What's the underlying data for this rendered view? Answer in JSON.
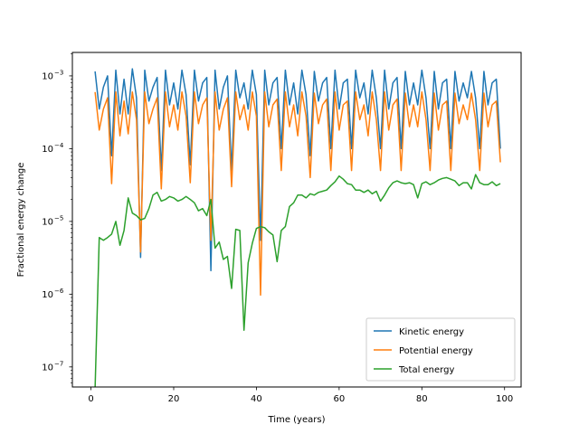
{
  "chart_data": {
    "type": "line",
    "title": "",
    "xlabel": "Time (years)",
    "ylabel": "Fractional energy change",
    "xscale": "linear",
    "yscale": "log",
    "xlim": [
      -4.5,
      104
    ],
    "ylim": [
      5.3e-08,
      0.0021
    ],
    "xticks": [
      0,
      20,
      40,
      60,
      80,
      100
    ],
    "xtick_labels": [
      "0",
      "20",
      "40",
      "60",
      "80",
      "100"
    ],
    "yticks": [
      1e-07,
      1e-06,
      1e-05,
      0.0001,
      0.001
    ],
    "ytick_labels": [
      {
        "base": "10",
        "exp": "−7"
      },
      {
        "base": "10",
        "exp": "−6"
      },
      {
        "base": "10",
        "exp": "−5"
      },
      {
        "base": "10",
        "exp": "−4"
      },
      {
        "base": "10",
        "exp": "−3"
      }
    ],
    "grid": false,
    "legend_position": "lower right",
    "series": [
      {
        "name": "Kinetic energy",
        "color": "#1f77b4",
        "x": [
          1,
          2,
          3,
          4,
          5,
          6,
          7,
          8,
          9,
          10,
          11,
          12,
          13,
          14,
          15,
          16,
          17,
          18,
          19,
          20,
          21,
          22,
          23,
          24,
          25,
          26,
          27,
          28,
          29,
          30,
          31,
          32,
          33,
          34,
          35,
          36,
          37,
          38,
          39,
          40,
          41,
          42,
          43,
          44,
          45,
          46,
          47,
          48,
          49,
          50,
          51,
          52,
          53,
          54,
          55,
          56,
          57,
          58,
          59,
          60,
          61,
          62,
          63,
          64,
          65,
          66,
          67,
          68,
          69,
          70,
          71,
          72,
          73,
          74,
          75,
          76,
          77,
          78,
          79,
          80,
          81,
          82,
          83,
          84,
          85,
          86,
          87,
          88,
          89,
          90,
          91,
          92,
          93,
          94,
          95,
          96,
          97,
          98,
          99
        ],
        "y": [
          0.00115,
          0.00035,
          0.0007,
          0.001,
          8e-05,
          0.0012,
          0.0003,
          0.0009,
          0.0003,
          0.00125,
          0.0005,
          3.2e-06,
          0.0012,
          0.00045,
          0.0007,
          0.00095,
          5e-05,
          0.0012,
          0.0004,
          0.0008,
          0.00035,
          0.0012,
          0.00055,
          6e-05,
          0.0012,
          0.00045,
          0.0008,
          0.00095,
          2.1e-06,
          0.0012,
          0.00035,
          0.0007,
          0.001,
          5e-05,
          0.0012,
          0.0005,
          0.0008,
          0.00035,
          0.0012,
          0.00055,
          5.5e-06,
          0.0012,
          0.0004,
          0.0008,
          0.00095,
          0.0001,
          0.0012,
          0.0004,
          0.0008,
          0.0003,
          0.0012,
          0.00055,
          8e-05,
          0.00115,
          0.00045,
          0.0008,
          0.00095,
          0.0001,
          0.0012,
          0.00035,
          0.0008,
          0.0009,
          0.0001,
          0.0012,
          0.0005,
          0.0008,
          0.0003,
          0.0012,
          0.0005,
          0.0001,
          0.0012,
          0.00035,
          0.0008,
          0.00095,
          0.0001,
          0.00115,
          0.0004,
          0.0008,
          0.0004,
          0.0012,
          0.0005,
          0.0001,
          0.00115,
          0.00035,
          0.0008,
          0.0009,
          0.0001,
          0.00115,
          0.00045,
          0.0008,
          0.0005,
          0.00115,
          0.0005,
          0.0001,
          0.00115,
          0.0004,
          0.0008,
          0.0009,
          0.0001
        ]
      },
      {
        "name": "Potential energy",
        "color": "#ff7f0e",
        "x": [
          1,
          2,
          3,
          4,
          5,
          6,
          7,
          8,
          9,
          10,
          11,
          12,
          13,
          14,
          15,
          16,
          17,
          18,
          19,
          20,
          21,
          22,
          23,
          24,
          25,
          26,
          27,
          28,
          29,
          30,
          31,
          32,
          33,
          34,
          35,
          36,
          37,
          38,
          39,
          40,
          41,
          42,
          43,
          44,
          45,
          46,
          47,
          48,
          49,
          50,
          51,
          52,
          53,
          54,
          55,
          56,
          57,
          58,
          59,
          60,
          61,
          62,
          63,
          64,
          65,
          66,
          67,
          68,
          69,
          70,
          71,
          72,
          73,
          74,
          75,
          76,
          77,
          78,
          79,
          80,
          81,
          82,
          83,
          84,
          85,
          86,
          87,
          88,
          89,
          90,
          91,
          92,
          93,
          94,
          95,
          96,
          97,
          98,
          99
        ],
        "y": [
          0.0006,
          0.00018,
          0.00035,
          0.0005,
          3.3e-05,
          0.0006,
          0.00015,
          0.00045,
          0.00016,
          0.0006,
          0.00025,
          3.8e-06,
          0.0006,
          0.00022,
          0.00035,
          0.0005,
          2.8e-05,
          0.0006,
          0.0002,
          0.0004,
          0.00018,
          0.0006,
          0.00028,
          3.4e-05,
          0.0006,
          0.00022,
          0.0004,
          0.0005,
          5.5e-06,
          0.0006,
          0.00018,
          0.00035,
          0.0005,
          3e-05,
          0.0006,
          0.00025,
          0.0004,
          0.00018,
          0.0006,
          0.00028,
          9.7e-07,
          0.0006,
          0.0002,
          0.0004,
          0.00048,
          5e-05,
          0.0006,
          0.0002,
          0.0004,
          0.00015,
          0.0006,
          0.00028,
          4e-05,
          0.00058,
          0.00022,
          0.0004,
          0.00048,
          5e-05,
          0.0006,
          0.00018,
          0.0004,
          0.00045,
          5e-05,
          0.0006,
          0.00025,
          0.0004,
          0.00015,
          0.0006,
          0.00025,
          5e-05,
          0.0006,
          0.00018,
          0.0004,
          0.00048,
          5e-05,
          0.00058,
          0.0002,
          0.0004,
          0.0002,
          0.0006,
          0.00025,
          5e-05,
          0.00058,
          0.00018,
          0.0004,
          0.00045,
          5e-05,
          0.00058,
          0.00022,
          0.0004,
          0.00025,
          0.00058,
          0.00025,
          5e-05,
          0.00058,
          0.0002,
          0.0004,
          0.00045,
          6.5e-05
        ]
      },
      {
        "name": "Total energy",
        "color": "#2ca02c",
        "x": [
          1,
          2,
          3,
          4,
          5,
          6,
          7,
          8,
          9,
          10,
          11,
          12,
          13,
          14,
          15,
          16,
          17,
          18,
          19,
          20,
          21,
          22,
          23,
          24,
          25,
          26,
          27,
          28,
          29,
          30,
          31,
          32,
          33,
          34,
          35,
          36,
          37,
          38,
          39,
          40,
          41,
          42,
          43,
          44,
          45,
          46,
          47,
          48,
          49,
          50,
          51,
          52,
          53,
          54,
          55,
          56,
          57,
          58,
          59,
          60,
          61,
          62,
          63,
          64,
          65,
          66,
          67,
          68,
          69,
          70,
          71,
          72,
          73,
          74,
          75,
          76,
          77,
          78,
          79,
          80,
          81,
          82,
          83,
          84,
          85,
          86,
          87,
          88,
          89,
          90,
          91,
          92,
          93,
          94,
          95,
          96,
          97,
          98,
          99
        ],
        "y": [
          5e-08,
          6e-06,
          5.5e-06,
          6e-06,
          6.7e-06,
          1e-05,
          4.7e-06,
          7.5e-06,
          2.1e-05,
          1.3e-05,
          1.2e-05,
          1.05e-05,
          1.1e-05,
          1.5e-05,
          2.3e-05,
          2.5e-05,
          1.9e-05,
          2e-05,
          2.2e-05,
          2.1e-05,
          1.9e-05,
          2e-05,
          2.2e-05,
          2e-05,
          1.8e-05,
          1.4e-05,
          1.5e-05,
          1.2e-05,
          2e-05,
          4.3e-06,
          5.2e-06,
          3e-06,
          3.3e-06,
          1.2e-06,
          7.8e-06,
          7.5e-06,
          3.2e-07,
          2.7e-06,
          5e-06,
          8e-06,
          8.5e-06,
          8.2e-06,
          7.2e-06,
          6.5e-06,
          2.8e-06,
          7.5e-06,
          8.5e-06,
          1.6e-05,
          1.8e-05,
          2.3e-05,
          2.3e-05,
          2.1e-05,
          2.4e-05,
          2.3e-05,
          2.5e-05,
          2.6e-05,
          2.7e-05,
          3.1e-05,
          3.5e-05,
          4.2e-05,
          3.8e-05,
          3.3e-05,
          3.2e-05,
          2.7e-05,
          2.7e-05,
          2.5e-05,
          2.7e-05,
          2.4e-05,
          2.6e-05,
          1.9e-05,
          2.3e-05,
          2.9e-05,
          3.4e-05,
          3.6e-05,
          3.4e-05,
          3.3e-05,
          3.4e-05,
          3.2e-05,
          2.1e-05,
          3.3e-05,
          3.5e-05,
          3.2e-05,
          3.4e-05,
          3.7e-05,
          3.9e-05,
          4e-05,
          3.8e-05,
          3.6e-05,
          3.1e-05,
          3.4e-05,
          3.4e-05,
          2.8e-05,
          4.4e-05,
          3.4e-05,
          3.2e-05,
          3.2e-05,
          3.5e-05,
          3.1e-05,
          3.3e-05
        ]
      }
    ]
  }
}
